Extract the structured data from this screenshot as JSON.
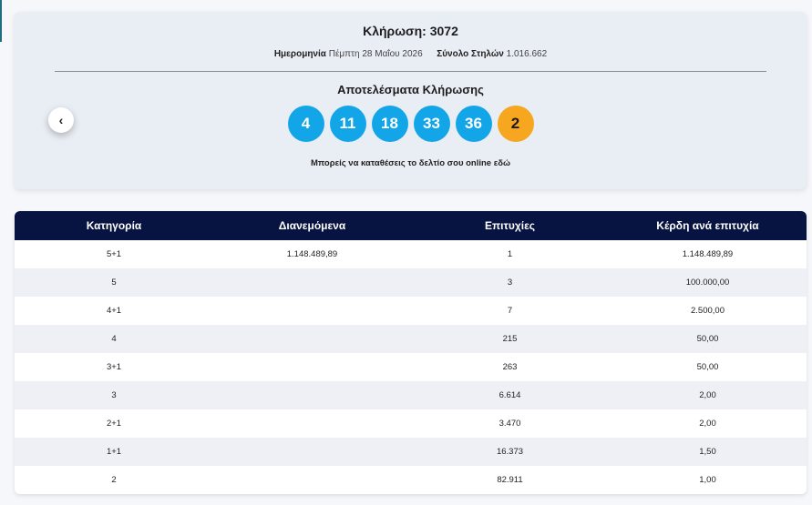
{
  "draw": {
    "title": "Κλήρωση: 3072",
    "date_label": "Ημερομηνία",
    "date_value": "Πέμπτη 28 Μαΐου 2026",
    "columns_label": "Σύνολο Στηλών",
    "columns_value": "1.016.662",
    "results_title": "Αποτελέσματα Κλήρωσης",
    "numbers": [
      "4",
      "11",
      "18",
      "33",
      "36"
    ],
    "joker": "2",
    "online_note": "Μπορείς να καταθέσεις το δελτίο σου online εδώ",
    "prev_icon": "‹"
  },
  "colors": {
    "ball_blue": "#12a5e8",
    "ball_joker": "#f6a61f",
    "table_header": "#071340"
  },
  "table": {
    "headers": [
      "Κατηγορία",
      "Διανεμόμενα",
      "Επιτυχίες",
      "Κέρδη ανά επιτυχία"
    ],
    "rows": [
      [
        "5+1",
        "1.148.489,89",
        "1",
        "1.148.489,89"
      ],
      [
        "5",
        "",
        "3",
        "100.000,00"
      ],
      [
        "4+1",
        "",
        "7",
        "2.500,00"
      ],
      [
        "4",
        "",
        "215",
        "50,00"
      ],
      [
        "3+1",
        "",
        "263",
        "50,00"
      ],
      [
        "3",
        "",
        "6.614",
        "2,00"
      ],
      [
        "2+1",
        "",
        "3.470",
        "2,00"
      ],
      [
        "1+1",
        "",
        "16.373",
        "1,50"
      ],
      [
        "2",
        "",
        "82.911",
        "1,00"
      ]
    ]
  }
}
